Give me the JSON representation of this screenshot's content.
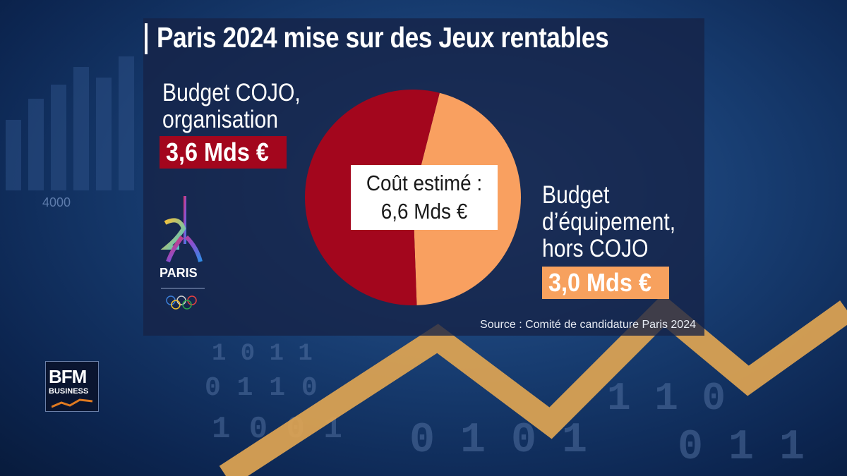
{
  "title": "Paris 2024 mise sur des Jeux rentables",
  "left_label_line1": "Budget COJO,",
  "left_label_line2": "organisation",
  "left_value": "3,6 Mds €",
  "right_label_line1": "Budget",
  "right_label_line2": "d’équipement,",
  "right_label_line3": "hors COJO",
  "right_value": "3,0 Mds €",
  "center_line1": "Coût estimé :",
  "center_line2": "6,6 Mds €",
  "source": "Source : Comité de candidature Paris 2024",
  "logo": {
    "name": "paris-2024-logo",
    "text": "PARIS"
  },
  "broadcaster": {
    "name": "bfm-business-logo",
    "line1": "BFM",
    "line2": "BUSINESS"
  },
  "colors": {
    "cojo": "#a3061d",
    "equipment": "#f9a060",
    "value_cojo_bg": "#a3061d",
    "value_equipment_bg": "#f7a15e"
  },
  "chart_data": {
    "type": "pie",
    "title": "Paris 2024 mise sur des Jeux rentables",
    "slices": [
      {
        "label": "Budget COJO, organisation",
        "value": 3.6,
        "display": "3,6 Mds €",
        "color": "#a3061d"
      },
      {
        "label": "Budget d’équipement, hors COJO",
        "value": 3.0,
        "display": "3,0 Mds €",
        "color": "#f9a060"
      }
    ],
    "total": 6.6,
    "total_display": "6,6 Mds €"
  }
}
